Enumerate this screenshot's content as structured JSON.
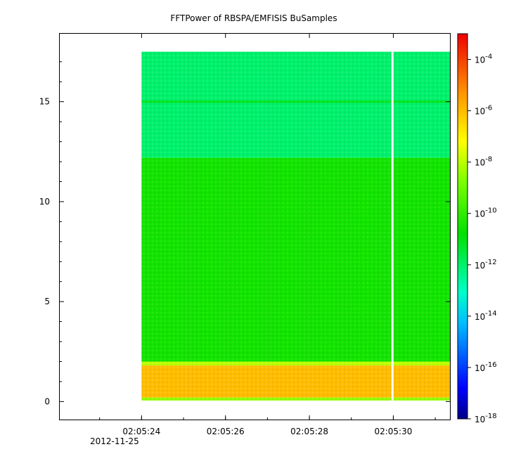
{
  "chart_data": {
    "type": "heatmap",
    "title": "FFTPower of RBSPA/EMFISIS  BuSamples",
    "xlabel": "",
    "ylabel": "",
    "date_label": "2012-11-25",
    "x_range": [
      "02:05:22.05",
      "02:05:31.35"
    ],
    "x_ticks": [
      "02:05:24",
      "02:05:26",
      "02:05:28",
      "02:05:30"
    ],
    "y_range": [
      -0.9,
      18.4
    ],
    "y_ticks": [
      0,
      5,
      10,
      15
    ],
    "data_x_range": [
      "02:05:24.00",
      "02:05:31.35"
    ],
    "data_y_range": [
      0.05,
      17.5
    ],
    "gap_time": "02:05:29.98",
    "colorbar": {
      "scale": "log",
      "range": [
        1e-18,
        0.001
      ],
      "tick_exponents": [
        -4,
        -6,
        -8,
        -10,
        -12,
        -14,
        -16,
        -18
      ],
      "tick_base": "10"
    },
    "bands": [
      {
        "y_from": 0.05,
        "y_to": 0.2,
        "level_log10": -8.5,
        "description": "bottom edge"
      },
      {
        "y_from": 0.2,
        "y_to": 1.8,
        "level_log10": -6.0
      },
      {
        "y_from": 1.8,
        "y_to": 2.0,
        "level_log10": -8.0
      },
      {
        "y_from": 2.0,
        "y_to": 12.2,
        "level_log10": -10.5
      },
      {
        "y_from": 12.2,
        "y_to": 17.5,
        "level_log10": -12.0
      },
      {
        "y_from": 14.95,
        "y_to": 15.05,
        "level_log10": -11.0,
        "description": "line at 15"
      }
    ]
  }
}
